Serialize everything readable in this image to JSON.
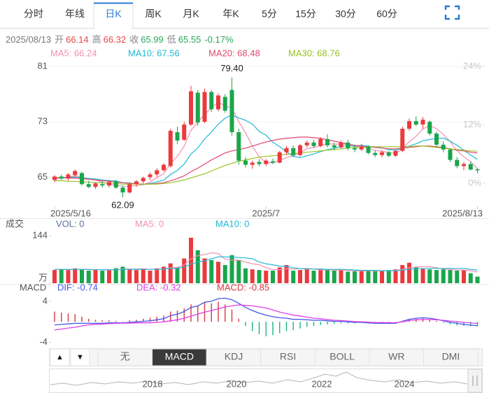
{
  "tabs": {
    "items": [
      "分时",
      "年线",
      "日K",
      "周K",
      "月K",
      "年K",
      "5分",
      "15分",
      "30分",
      "60分"
    ],
    "active": 2
  },
  "quote": {
    "date": "2025/08/13",
    "items": [
      {
        "label": "开",
        "value": 66.14,
        "color": "#e8474a"
      },
      {
        "label": "高",
        "value": 66.32,
        "color": "#e8474a"
      },
      {
        "label": "收",
        "value": 65.99,
        "color": "#2aa55a"
      },
      {
        "label": "低",
        "value": 65.55,
        "color": "#2aa55a"
      }
    ],
    "change": "-0.17%",
    "change_color": "#2aa55a"
  },
  "indicator_tabs": {
    "items": [
      "▲",
      "▼",
      "无",
      "MACD",
      "KDJ",
      "RSI",
      "BOLL",
      "WR",
      "DMI"
    ],
    "active": 3
  },
  "navigator": {
    "labels": [
      "2018",
      "2020",
      "2022",
      "2024"
    ]
  },
  "chart_data": [
    {
      "type": "candlestick",
      "grid": true,
      "categories": [
        "2025/5/16",
        null,
        null,
        null,
        null,
        null,
        null,
        null,
        null,
        null,
        null,
        null,
        null,
        null,
        null,
        null,
        null,
        null,
        null,
        null,
        null,
        null,
        null,
        null,
        null,
        null,
        null,
        null,
        null,
        null,
        null,
        "2025/7",
        null,
        null,
        null,
        null,
        null,
        null,
        null,
        null,
        null,
        null,
        null,
        null,
        null,
        null,
        null,
        null,
        null,
        null,
        null,
        null,
        null,
        null,
        null,
        null,
        null,
        null,
        null,
        null,
        null,
        null,
        "2025/8/13"
      ],
      "open": [
        64.6,
        65.1,
        64.8,
        65.3,
        65.6,
        64.0,
        63.6,
        64.0,
        63.8,
        64.4,
        63.5,
        62.8,
        64.0,
        64.4,
        65.0,
        65.4,
        66.0,
        66.6,
        71.5,
        70.4,
        72.6,
        77.2,
        73.0,
        77.3,
        74.8,
        76.6,
        77.6,
        71.5,
        67.4,
        66.8,
        67.2,
        66.9,
        67.3,
        67.1,
        68.6,
        69.2,
        68.2,
        69.6,
        70.0,
        69.5,
        70.5,
        69.6,
        69.3,
        70.0,
        69.2,
        69.0,
        69.4,
        68.5,
        68.2,
        68.6,
        68.1,
        68.8,
        72.0,
        73.1,
        72.6,
        73.0,
        71.3,
        69.7,
        69.0,
        67.5,
        66.6,
        66.9,
        66.14
      ],
      "high": [
        65.3,
        65.4,
        65.6,
        66.1,
        65.8,
        64.5,
        64.3,
        64.4,
        64.6,
        64.6,
        63.8,
        64.3,
        64.6,
        65.1,
        65.7,
        66.3,
        67.0,
        72.0,
        72.3,
        73.0,
        78.2,
        77.6,
        77.8,
        77.6,
        77.1,
        77.0,
        79.4,
        72.0,
        67.9,
        67.4,
        67.6,
        67.6,
        67.7,
        68.8,
        69.5,
        69.6,
        69.8,
        70.3,
        70.4,
        70.8,
        71.2,
        70.0,
        70.3,
        70.4,
        69.7,
        69.8,
        69.6,
        68.9,
        68.9,
        68.8,
        69.0,
        72.3,
        73.5,
        73.8,
        73.7,
        73.2,
        71.6,
        70.2,
        69.2,
        67.9,
        67.2,
        67.3,
        66.32
      ],
      "low": [
        64.3,
        64.6,
        64.5,
        65.0,
        63.8,
        63.4,
        63.3,
        63.5,
        63.5,
        63.3,
        62.09,
        62.6,
        63.6,
        64.1,
        64.6,
        65.0,
        65.8,
        66.4,
        69.8,
        70.2,
        72.4,
        72.4,
        72.8,
        74.4,
        74.5,
        74.3,
        71.0,
        66.8,
        66.4,
        66.2,
        66.6,
        66.6,
        66.9,
        67.0,
        68.2,
        67.9,
        68.0,
        69.3,
        69.2,
        69.3,
        69.3,
        68.9,
        69.1,
        68.9,
        68.6,
        68.8,
        68.3,
        67.9,
        67.9,
        67.9,
        67.9,
        68.6,
        71.7,
        72.4,
        72.0,
        71.0,
        69.4,
        68.6,
        67.2,
        66.3,
        66.0,
        66.0,
        65.55
      ],
      "close": [
        65.1,
        64.8,
        65.4,
        65.9,
        64.0,
        63.6,
        64.1,
        63.8,
        64.3,
        63.5,
        62.8,
        64.0,
        64.4,
        64.9,
        65.4,
        66.0,
        66.8,
        71.7,
        70.3,
        72.6,
        77.4,
        72.9,
        77.3,
        74.8,
        76.8,
        74.6,
        71.5,
        67.4,
        66.8,
        67.1,
        66.9,
        67.4,
        67.1,
        68.6,
        69.2,
        68.2,
        69.6,
        70.0,
        69.5,
        70.5,
        69.6,
        69.3,
        70.0,
        69.2,
        69.0,
        69.4,
        68.5,
        68.2,
        68.6,
        68.1,
        68.8,
        72.0,
        73.1,
        72.6,
        73.3,
        71.3,
        69.7,
        69.0,
        67.5,
        66.6,
        66.9,
        66.1,
        65.99
      ],
      "up_color": "#ea3a3d",
      "down_color": "#1aa64b",
      "series": [
        {
          "name": "MA5: 66.24",
          "color": "#f48fb1",
          "values": [
            64.8,
            64.9,
            65.0,
            65.2,
            65.04,
            64.74,
            64.6,
            64.28,
            63.96,
            63.86,
            63.7,
            63.68,
            63.8,
            63.92,
            64.3,
            64.94,
            65.5,
            66.96,
            68.04,
            69.48,
            71.76,
            72.98,
            74.1,
            75.0,
            75.84,
            75.28,
            75.0,
            73.02,
            71.42,
            69.48,
            67.94,
            67.12,
            67.06,
            67.42,
            67.84,
            68.1,
            68.54,
            69.12,
            69.3,
            69.56,
            69.84,
            69.78,
            69.78,
            69.72,
            69.42,
            69.38,
            69.22,
            68.86,
            68.74,
            68.56,
            68.44,
            69.14,
            70.12,
            70.92,
            71.96,
            72.46,
            72.0,
            71.18,
            70.16,
            68.82,
            67.94,
            67.22,
            66.24
          ]
        },
        {
          "name": "MA10: 67.56",
          "color": "#1fb8d6",
          "values": [
            64.9,
            64.9,
            65.0,
            65.0,
            64.95,
            64.8,
            64.75,
            64.6,
            64.5,
            64.45,
            64.22,
            64.14,
            64.04,
            63.94,
            64.08,
            64.32,
            64.59,
            65.38,
            65.98,
            66.89,
            68.35,
            69.24,
            70.53,
            71.52,
            72.66,
            73.52,
            73.99,
            73.56,
            73.21,
            72.66,
            71.61,
            71.06,
            70.04,
            69.42,
            68.66,
            68.02,
            67.83,
            68.09,
            68.36,
            68.7,
            68.97,
            69.16,
            69.45,
            69.51,
            69.49,
            69.61,
            69.5,
            69.32,
            69.23,
            68.99,
            68.91,
            69.18,
            69.49,
            69.83,
            70.26,
            70.45,
            70.57,
            70.65,
            70.2,
            69.6,
            68.9,
            68.2,
            67.56
          ]
        },
        {
          "name": "MA20: 68.48",
          "color": "#e2466e",
          "values": [
            64.9,
            64.9,
            64.9,
            64.85,
            64.8,
            64.7,
            64.6,
            64.5,
            64.4,
            64.3,
            64.2,
            64.1,
            64.05,
            64.0,
            64.0,
            64.1,
            64.2,
            64.5,
            64.8,
            65.2,
            65.8,
            66.3,
            66.9,
            67.5,
            68.0,
            68.5,
            68.8,
            69.0,
            69.2,
            69.5,
            69.8,
            70.1,
            70.3,
            70.5,
            70.6,
            70.7,
            70.8,
            70.8,
            70.7,
            70.6,
            70.4,
            70.2,
            70.0,
            69.8,
            69.6,
            69.5,
            69.4,
            69.3,
            69.2,
            69.1,
            69.1,
            69.2,
            69.3,
            69.4,
            69.5,
            69.5,
            69.4,
            69.3,
            69.1,
            68.9,
            68.8,
            68.6,
            68.48
          ]
        },
        {
          "name": "MA30: 68.76",
          "color": "#98c21f",
          "values": [
            64.5,
            64.5,
            64.4,
            64.4,
            64.3,
            64.3,
            64.2,
            64.2,
            64.1,
            64.1,
            64.0,
            64.0,
            64.0,
            64.0,
            64.0,
            64.0,
            64.1,
            64.2,
            64.4,
            64.6,
            64.9,
            65.2,
            65.5,
            65.9,
            66.3,
            66.7,
            67.0,
            67.3,
            67.5,
            67.7,
            67.9,
            68.0,
            68.1,
            68.2,
            68.3,
            68.4,
            68.5,
            68.6,
            68.7,
            68.8,
            68.9,
            69.0,
            69.1,
            69.2,
            69.3,
            69.3,
            69.4,
            69.4,
            69.4,
            69.4,
            69.4,
            69.4,
            69.4,
            69.5,
            69.5,
            69.4,
            69.3,
            69.2,
            69.1,
            69.0,
            68.9,
            68.8,
            68.76
          ]
        }
      ],
      "ylim": [
        60.8,
        81.7
      ],
      "yticks": [
        65,
        73,
        81
      ],
      "y2lim": [
        -4.7,
        25.0
      ],
      "y2ticks": [
        {
          "value": 0,
          "label": "0%"
        },
        {
          "value": 12,
          "label": "12%"
        },
        {
          "value": 24,
          "label": "24%"
        }
      ],
      "annotations": [
        {
          "text": "79.40",
          "at": "high"
        },
        {
          "text": "62.09",
          "at": "low"
        }
      ]
    },
    {
      "type": "bar",
      "title": "成交",
      "series": [
        {
          "name": "VOL: 0",
          "type": "bar",
          "values": [
            40,
            42,
            40,
            45,
            42,
            38,
            42,
            38,
            40,
            45,
            50,
            42,
            40,
            42,
            38,
            45,
            50,
            60,
            48,
            75,
            138,
            100,
            75,
            70,
            65,
            55,
            85,
            70,
            45,
            42,
            40,
            38,
            38,
            48,
            55,
            38,
            40,
            42,
            38,
            44,
            40,
            38,
            40,
            35,
            36,
            38,
            40,
            36,
            38,
            40,
            42,
            55,
            62,
            48,
            45,
            42,
            40,
            42,
            40,
            38,
            40,
            30,
            20
          ]
        },
        {
          "name": "MA5: 0",
          "type": "line",
          "color": "#f48fb1",
          "values": [
            42,
            42,
            41,
            42,
            42,
            41,
            41,
            41,
            40,
            41,
            43,
            43,
            43,
            44,
            42,
            41,
            43,
            47,
            48,
            56,
            74,
            84,
            87,
            92,
            90,
            73,
            70,
            70,
            64,
            59,
            56,
            47,
            41,
            41,
            44,
            43,
            44,
            45,
            43,
            40,
            41,
            40,
            40,
            39,
            38,
            37,
            38,
            37,
            38,
            38,
            39,
            42,
            47,
            49,
            50,
            50,
            47,
            43,
            42,
            40,
            40,
            38,
            34
          ]
        },
        {
          "name": "MA10: 0",
          "type": "line",
          "color": "#1fb8d6",
          "values": [
            42,
            42,
            42,
            42,
            42,
            42,
            41,
            41,
            41,
            41,
            42,
            42,
            42,
            42,
            42,
            42,
            43,
            45,
            45,
            49,
            58,
            64,
            68,
            74,
            80,
            80,
            79,
            78,
            77,
            74,
            64,
            59,
            56,
            52,
            51,
            47,
            44,
            43,
            43,
            43,
            42,
            42,
            42,
            41,
            40,
            39,
            39,
            39,
            38,
            38,
            38,
            40,
            42,
            44,
            44,
            45,
            45,
            45,
            45,
            45,
            45,
            42,
            40
          ]
        }
      ],
      "ylim": [
        0,
        159
      ],
      "yticks": [
        {
          "value": 0,
          "label": "万"
        },
        144
      ]
    },
    {
      "type": "macd",
      "title": "MACD",
      "up_color": "#d9363e",
      "down_color": "#1fb08a",
      "series": [
        {
          "name": "DIF: -0.74",
          "type": "line",
          "color": "#4257e8",
          "values": [
            -0.6,
            -0.5,
            -0.4,
            -0.3,
            -0.3,
            -0.3,
            -0.3,
            -0.3,
            -0.2,
            -0.2,
            -0.2,
            -0.1,
            0,
            0.1,
            0.2,
            0.4,
            0.6,
            1.2,
            1.5,
            2.0,
            2.8,
            3.1,
            3.8,
            4.0,
            4.5,
            4.6,
            4.3,
            3.6,
            2.8,
            2.2,
            1.7,
            1.3,
            1.0,
            0.8,
            0.7,
            0.5,
            0.5,
            0.4,
            0.3,
            0.3,
            0.2,
            0.1,
            0.1,
            0,
            -0.1,
            -0.1,
            -0.2,
            -0.3,
            -0.3,
            -0.3,
            -0.3,
            0.1,
            0.5,
            0.7,
            0.8,
            0.7,
            0.5,
            0.2,
            -0.1,
            -0.3,
            -0.5,
            -0.65,
            -0.74
          ]
        },
        {
          "name": "DEA: -0.32",
          "type": "line",
          "color": "#e040e8",
          "values": [
            -1.6,
            -1.4,
            -1.2,
            -1.05,
            -0.8,
            -0.6,
            -0.5,
            -0.45,
            -0.35,
            -0.3,
            -0.25,
            -0.25,
            -0.2,
            -0.2,
            -0.2,
            -0.1,
            0,
            0.2,
            0.4,
            0.7,
            1.1,
            1.5,
            1.9,
            2.2,
            2.55,
            2.9,
            3.1,
            3.3,
            3.2,
            3.1,
            2.9,
            2.7,
            2.3,
            1.9,
            1.6,
            1.3,
            1.15,
            0.9,
            0.7,
            0.6,
            0.45,
            0.3,
            0.25,
            0.15,
            0.05,
            0,
            -0.05,
            -0.15,
            -0.15,
            -0.15,
            -0.2,
            0,
            0.25,
            0.4,
            0.45,
            0.45,
            0.4,
            0.3,
            0.15,
            0.05,
            -0.1,
            -0.22,
            -0.32
          ]
        },
        {
          "name": "MACD: -0.85",
          "type": "bar",
          "color": "#d9363e",
          "values": [
            2.0,
            1.8,
            1.6,
            1.5,
            1.0,
            0.6,
            0.4,
            0.3,
            0.3,
            0.2,
            0.1,
            0.3,
            0.4,
            0.6,
            0.8,
            1.0,
            1.2,
            2.0,
            2.2,
            2.6,
            3.4,
            3.2,
            3.8,
            3.6,
            3.9,
            3.4,
            2.4,
            0.6,
            -0.8,
            -1.8,
            -2.4,
            -2.8,
            -2.6,
            -2.2,
            -1.8,
            -1.6,
            -1.3,
            -1.0,
            -0.8,
            -0.6,
            -0.5,
            -0.4,
            -0.3,
            -0.3,
            -0.3,
            -0.2,
            -0.3,
            -0.3,
            -0.3,
            -0.3,
            -0.2,
            0.2,
            0.5,
            0.6,
            0.7,
            0.5,
            0.2,
            -0.2,
            -0.5,
            -0.7,
            -0.8,
            -0.85,
            -0.85
          ]
        }
      ],
      "ylim": [
        -5.0,
        5.2
      ],
      "yticks": [
        -4,
        4
      ]
    }
  ]
}
